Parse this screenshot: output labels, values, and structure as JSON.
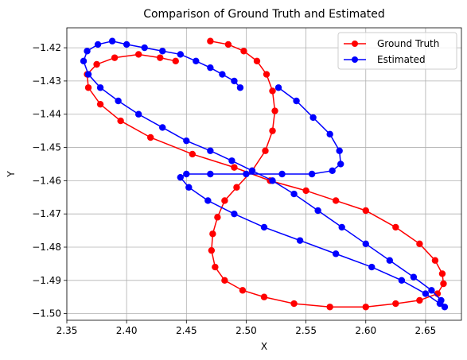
{
  "chart_data": {
    "type": "line",
    "title": "Comparison of Ground Truth and Estimated",
    "xlabel": "X",
    "ylabel": "Y",
    "xlim": [
      2.35,
      2.68
    ],
    "ylim": [
      -1.502,
      -1.414
    ],
    "xticks": [
      "2.35",
      "2.40",
      "2.45",
      "2.50",
      "2.55",
      "2.60",
      "2.65"
    ],
    "yticks": [
      "−1.42",
      "−1.43",
      "−1.44",
      "−1.45",
      "−1.46",
      "−1.47",
      "−1.48",
      "−1.49",
      "−1.50"
    ],
    "grid": true,
    "legend": "top-right",
    "series": [
      {
        "name": "Ground Truth",
        "color": "#ff0000",
        "marker": "circle",
        "points": [
          [
            2.47,
            -1.418
          ],
          [
            2.485,
            -1.419
          ],
          [
            2.498,
            -1.421
          ],
          [
            2.509,
            -1.424
          ],
          [
            2.517,
            -1.428
          ],
          [
            2.522,
            -1.433
          ],
          [
            2.524,
            -1.439
          ],
          [
            2.522,
            -1.445
          ],
          [
            2.516,
            -1.451
          ],
          [
            2.505,
            -1.457
          ],
          [
            2.492,
            -1.462
          ],
          [
            2.482,
            -1.466
          ],
          [
            2.476,
            -1.471
          ],
          [
            2.472,
            -1.476
          ],
          [
            2.471,
            -1.481
          ],
          [
            2.474,
            -1.486
          ],
          [
            2.482,
            -1.49
          ],
          [
            2.497,
            -1.493
          ],
          [
            2.515,
            -1.495
          ],
          [
            2.54,
            -1.497
          ],
          [
            2.57,
            -1.498
          ],
          [
            2.6,
            -1.498
          ],
          [
            2.625,
            -1.497
          ],
          [
            2.645,
            -1.496
          ],
          [
            2.66,
            -1.494
          ],
          [
            2.665,
            -1.491
          ],
          [
            2.664,
            -1.488
          ],
          [
            2.658,
            -1.484
          ],
          [
            2.645,
            -1.479
          ],
          [
            2.625,
            -1.474
          ],
          [
            2.6,
            -1.469
          ],
          [
            2.575,
            -1.466
          ],
          [
            2.55,
            -1.463
          ],
          [
            2.52,
            -1.46
          ],
          [
            2.49,
            -1.456
          ],
          [
            2.455,
            -1.452
          ],
          [
            2.42,
            -1.447
          ],
          [
            2.395,
            -1.442
          ],
          [
            2.378,
            -1.437
          ],
          [
            2.368,
            -1.432
          ],
          [
            2.367,
            -1.428
          ],
          [
            2.375,
            -1.425
          ],
          [
            2.39,
            -1.423
          ],
          [
            2.41,
            -1.422
          ],
          [
            2.428,
            -1.423
          ],
          [
            2.441,
            -1.424
          ]
        ]
      },
      {
        "name": "Estimated",
        "color": "#0000ff",
        "marker": "circle",
        "points": [
          [
            2.495,
            -1.432
          ],
          [
            2.49,
            -1.43
          ],
          [
            2.48,
            -1.428
          ],
          [
            2.47,
            -1.426
          ],
          [
            2.458,
            -1.424
          ],
          [
            2.445,
            -1.422
          ],
          [
            2.43,
            -1.421
          ],
          [
            2.415,
            -1.42
          ],
          [
            2.4,
            -1.419
          ],
          [
            2.388,
            -1.418
          ],
          [
            2.376,
            -1.419
          ],
          [
            2.367,
            -1.421
          ],
          [
            2.364,
            -1.424
          ],
          [
            2.368,
            -1.428
          ],
          [
            2.378,
            -1.432
          ],
          [
            2.393,
            -1.436
          ],
          [
            2.41,
            -1.44
          ],
          [
            2.43,
            -1.444
          ],
          [
            2.45,
            -1.448
          ],
          [
            2.47,
            -1.451
          ],
          [
            2.488,
            -1.454
          ],
          [
            2.505,
            -1.457
          ],
          [
            2.522,
            -1.46
          ],
          [
            2.54,
            -1.464
          ],
          [
            2.56,
            -1.469
          ],
          [
            2.58,
            -1.474
          ],
          [
            2.6,
            -1.479
          ],
          [
            2.62,
            -1.484
          ],
          [
            2.64,
            -1.489
          ],
          [
            2.655,
            -1.493
          ],
          [
            2.663,
            -1.496
          ],
          [
            2.666,
            -1.498
          ],
          [
            2.662,
            -1.497
          ],
          [
            2.65,
            -1.494
          ],
          [
            2.63,
            -1.49
          ],
          [
            2.605,
            -1.486
          ],
          [
            2.575,
            -1.482
          ],
          [
            2.545,
            -1.478
          ],
          [
            2.515,
            -1.474
          ],
          [
            2.49,
            -1.47
          ],
          [
            2.468,
            -1.466
          ],
          [
            2.452,
            -1.462
          ],
          [
            2.445,
            -1.459
          ],
          [
            2.45,
            -1.458
          ],
          [
            2.47,
            -1.458
          ],
          [
            2.5,
            -1.458
          ],
          [
            2.53,
            -1.458
          ],
          [
            2.555,
            -1.458
          ],
          [
            2.572,
            -1.457
          ],
          [
            2.579,
            -1.455
          ],
          [
            2.578,
            -1.451
          ],
          [
            2.57,
            -1.446
          ],
          [
            2.556,
            -1.441
          ],
          [
            2.542,
            -1.436
          ],
          [
            2.527,
            -1.432
          ]
        ]
      }
    ]
  }
}
